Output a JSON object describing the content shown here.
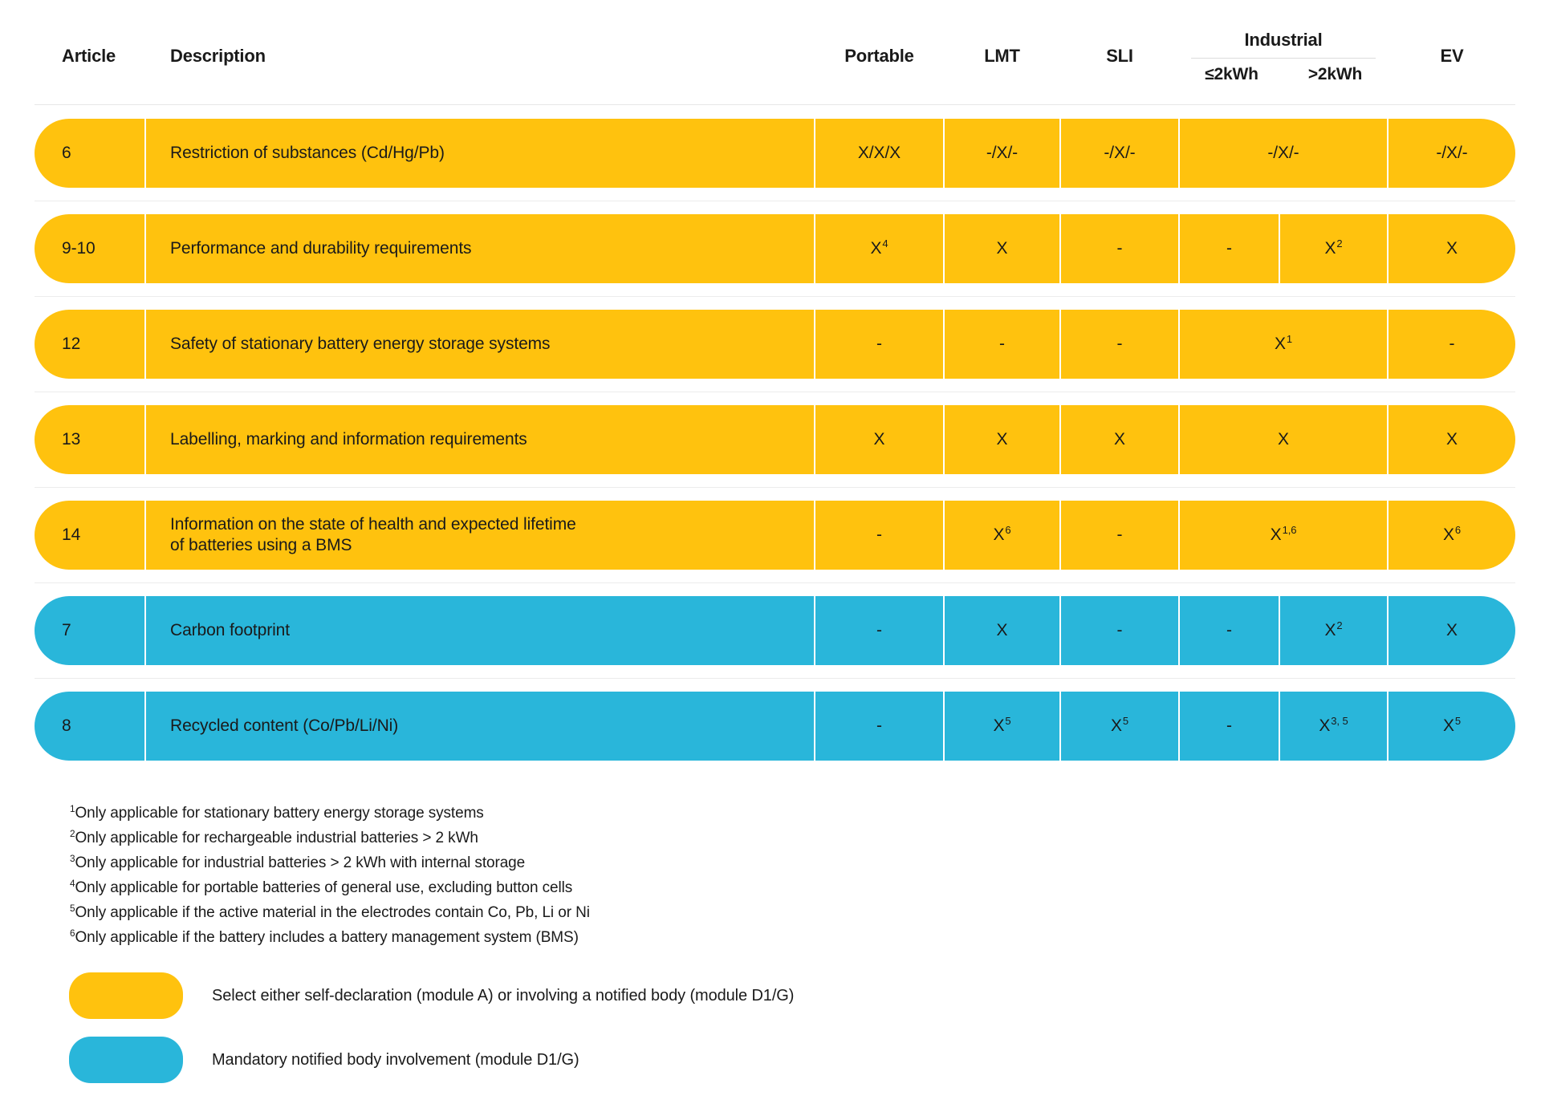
{
  "colors": {
    "yellow": "#FFC20E",
    "blue": "#29B6DA",
    "separator": "#ECECEC",
    "text": "#1A1A1A"
  },
  "table": {
    "header": {
      "article": "Article",
      "description": "Description",
      "portable": "Portable",
      "lmt": "LMT",
      "sli": "SLI",
      "industrial": "Industrial",
      "industrial_sub": [
        "≤2kWh",
        ">2kWh"
      ],
      "ev": "EV"
    },
    "rows": [
      {
        "article": "6",
        "color": "yellow",
        "description": "Restriction of substances (Cd/Hg/Pb)",
        "portable": {
          "t": "X/X/X"
        },
        "lmt": {
          "t": "-/X/-"
        },
        "sli": {
          "t": "-/X/-"
        },
        "industrial": {
          "merged": true,
          "cell": {
            "t": "-/X/-"
          }
        },
        "ev": {
          "t": "-/X/-"
        }
      },
      {
        "article": "9-10",
        "color": "yellow",
        "description": "Performance and durability requirements",
        "portable": {
          "t": "X",
          "sup": "4"
        },
        "lmt": {
          "t": "X"
        },
        "sli": {
          "t": "-"
        },
        "industrial": {
          "merged": false,
          "le": {
            "t": "-"
          },
          "gt": {
            "t": "X",
            "sup": "2"
          }
        },
        "ev": {
          "t": "X"
        }
      },
      {
        "article": "12",
        "color": "yellow",
        "description": "Safety of stationary battery energy storage systems",
        "portable": {
          "t": "-"
        },
        "lmt": {
          "t": "-"
        },
        "sli": {
          "t": "-"
        },
        "industrial": {
          "merged": true,
          "cell": {
            "t": "X",
            "sup": "1"
          }
        },
        "ev": {
          "t": "-"
        }
      },
      {
        "article": "13",
        "color": "yellow",
        "description": "Labelling, marking and information requirements",
        "portable": {
          "t": "X"
        },
        "lmt": {
          "t": "X"
        },
        "sli": {
          "t": "X"
        },
        "industrial": {
          "merged": true,
          "cell": {
            "t": "X"
          }
        },
        "ev": {
          "t": "X"
        }
      },
      {
        "article": "14",
        "color": "yellow",
        "description": "Information on the state of health and expected lifetime",
        "description2": "of batteries using a BMS",
        "portable": {
          "t": "-"
        },
        "lmt": {
          "t": "X",
          "sup": "6"
        },
        "sli": {
          "t": "-"
        },
        "industrial": {
          "merged": true,
          "cell": {
            "t": "X",
            "sup": "1,6"
          }
        },
        "ev": {
          "t": "X",
          "sup": "6"
        }
      },
      {
        "article": "7",
        "color": "blue",
        "description": "Carbon footprint",
        "portable": {
          "t": "-"
        },
        "lmt": {
          "t": "X"
        },
        "sli": {
          "t": "-"
        },
        "industrial": {
          "merged": false,
          "le": {
            "t": "-"
          },
          "gt": {
            "t": "X",
            "sup": "2"
          }
        },
        "ev": {
          "t": "X"
        }
      },
      {
        "article": "8",
        "color": "blue",
        "description": "Recycled content (Co/Pb/Li/Ni)",
        "portable": {
          "t": "-"
        },
        "lmt": {
          "t": "X",
          "sup": "5"
        },
        "sli": {
          "t": "X",
          "sup": "5"
        },
        "industrial": {
          "merged": false,
          "le": {
            "t": "-"
          },
          "gt": {
            "t": "X",
            "sup": "3, 5"
          }
        },
        "ev": {
          "t": "X",
          "sup": "5"
        }
      }
    ]
  },
  "footnotes": [
    {
      "sup": "1",
      "text": "Only applicable for stationary battery energy storage systems"
    },
    {
      "sup": "2",
      "text": "Only applicable for rechargeable industrial batteries > 2 kWh"
    },
    {
      "sup": "3",
      "text": "Only applicable for industrial batteries > 2 kWh with internal storage"
    },
    {
      "sup": "4",
      "text": "Only applicable for portable batteries of general use, excluding button cells"
    },
    {
      "sup": "5",
      "text": "Only applicable if the active material in the electrodes contain Co, Pb, Li or Ni"
    },
    {
      "sup": "6",
      "text": "Only applicable if the battery includes a battery management system (BMS)"
    }
  ],
  "legend": [
    {
      "color": "yellow",
      "text": "Select either self-declaration (module A) or involving a notified body (module D1/G)"
    },
    {
      "color": "blue",
      "text": "Mandatory notified body involvement (module D1/G)"
    }
  ],
  "chart_data": {
    "type": "table",
    "title": "",
    "columns": [
      "Article",
      "Description",
      "Portable",
      "LMT",
      "SLI",
      "Industrial ≤2kWh",
      "Industrial >2kWh",
      "EV"
    ],
    "rows": [
      [
        "6",
        "Restriction of substances (Cd/Hg/Pb)",
        "X/X/X",
        "-/X/-",
        "-/X/-",
        "-/X/-",
        "-/X/-",
        "-/X/-"
      ],
      [
        "9-10",
        "Performance and durability requirements",
        "X^4",
        "X",
        "-",
        "-",
        "X^2",
        "X"
      ],
      [
        "12",
        "Safety of stationary battery energy storage systems",
        "-",
        "-",
        "-",
        "X^1",
        "X^1",
        "-"
      ],
      [
        "13",
        "Labelling, marking and information requirements",
        "X",
        "X",
        "X",
        "X",
        "X",
        "X"
      ],
      [
        "14",
        "Information on the state of health and expected lifetime of batteries using a BMS",
        "-",
        "X^6",
        "-",
        "X^1,6",
        "X^1,6",
        "X^6"
      ],
      [
        "7",
        "Carbon footprint",
        "-",
        "X",
        "-",
        "-",
        "X^2",
        "X"
      ],
      [
        "8",
        "Recycled content (Co/Pb/Li/Ni)",
        "-",
        "X^5",
        "X^5",
        "-",
        "X^3, 5",
        "X^5"
      ]
    ],
    "row_colors": [
      "yellow",
      "yellow",
      "yellow",
      "yellow",
      "yellow",
      "blue",
      "blue"
    ],
    "legend": [
      {
        "color": "yellow",
        "meaning": "Select either self-declaration (module A) or involving a notified body (module D1/G)"
      },
      {
        "color": "blue",
        "meaning": "Mandatory notified body involvement (module D1/G)"
      }
    ]
  }
}
